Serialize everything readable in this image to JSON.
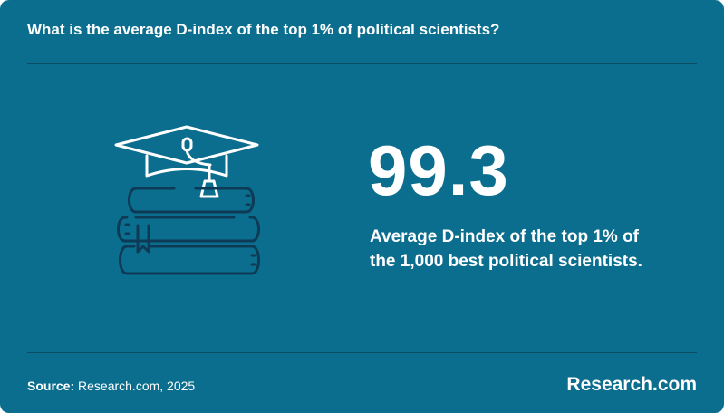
{
  "header": {
    "title": "What is the average D-index of the top 1% of political scientists?"
  },
  "stat": {
    "value": "99.3",
    "description_line1": "Average D-index of the top 1% of",
    "description_line2": "the 1,000 best political scientists."
  },
  "footer": {
    "source_label": "Source:",
    "source_text": " Research.com, 2025",
    "brand": "Research.com"
  },
  "colors": {
    "background": "#0b6e8e",
    "text": "#ffffff",
    "divider": "#0d4a63",
    "icon_stroke": "#ffffff",
    "icon_stroke_dark": "#0d3b55"
  },
  "icons": {
    "illustration": "graduation-cap-books-icon"
  }
}
